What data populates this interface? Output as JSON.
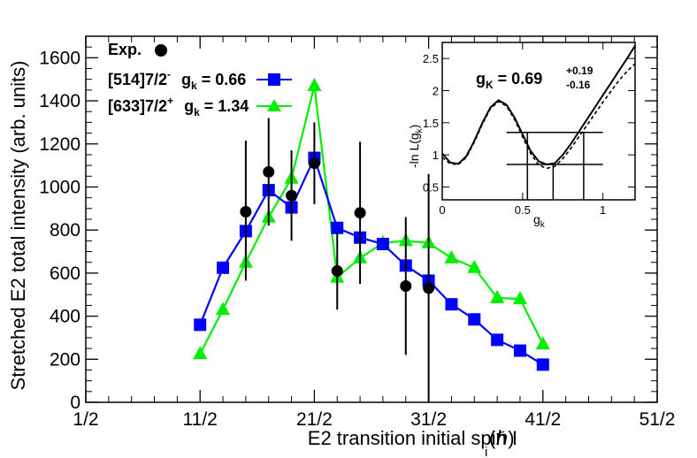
{
  "chart_data": {
    "type": "line",
    "xlabel": "E2 transition initial spin I",
    "xlabel_subscript": "i",
    "xlabel_unit": "(ℏ)",
    "ylabel": "Stretched E2 total intensity (arb. units)",
    "xlim": [
      0.5,
      25.5
    ],
    "ylim": [
      0,
      1700
    ],
    "x_ticks": [
      {
        "value": 0.5,
        "label": "1/2"
      },
      {
        "value": 5.5,
        "label": "11/2"
      },
      {
        "value": 10.5,
        "label": "21/2"
      },
      {
        "value": 15.5,
        "label": "31/2"
      },
      {
        "value": 20.5,
        "label": "41/2"
      },
      {
        "value": 25.5,
        "label": "51/2"
      }
    ],
    "y_ticks": [
      0,
      200,
      400,
      600,
      800,
      1000,
      1200,
      1400,
      1600
    ],
    "series": [
      {
        "name": "Exp.",
        "color": "#000000",
        "marker": "circle",
        "x": [
          7.5,
          8.5,
          9.5,
          10.5,
          11.5,
          12.5,
          14.5,
          15.5
        ],
        "y": [
          885,
          1070,
          960,
          1110,
          610,
          880,
          540,
          530
        ],
        "err_low": [
          320,
          250,
          210,
          190,
          180,
          330,
          320,
          530
        ],
        "err_high": [
          330,
          250,
          210,
          190,
          180,
          330,
          320,
          530
        ]
      },
      {
        "name": "[514]7/2",
        "name_sup": "-",
        "g_label": "g",
        "g_sub": "k",
        "g_value": " = 0.66",
        "color": "#0000ff",
        "marker": "square",
        "x": [
          5.5,
          6.5,
          7.5,
          8.5,
          9.5,
          10.5,
          11.5,
          12.5,
          13.5,
          14.5,
          15.5,
          16.5,
          17.5,
          18.5,
          19.5,
          20.5
        ],
        "y": [
          360,
          625,
          795,
          985,
          905,
          1135,
          810,
          765,
          735,
          635,
          565,
          455,
          385,
          290,
          240,
          175
        ]
      },
      {
        "name": "[633]7/2",
        "name_sup": "+",
        "g_label": "g",
        "g_sub": "k",
        "g_value": " = 1.34",
        "color": "#00ee00",
        "marker": "triangle",
        "x": [
          5.5,
          6.5,
          7.5,
          8.5,
          9.5,
          10.5,
          11.5,
          12.5,
          13.5,
          14.5,
          15.5,
          16.5,
          17.5,
          18.5,
          19.5,
          20.5
        ],
        "y": [
          225,
          430,
          650,
          860,
          1040,
          1470,
          580,
          670,
          740,
          750,
          740,
          670,
          625,
          485,
          480,
          270
        ]
      }
    ],
    "inset": {
      "xlabel": "g",
      "xlabel_sub": "k",
      "ylabel": "-ln L(g",
      "ylabel_sub": "k",
      "ylabel_close": ")",
      "xlim": [
        0,
        1.2
      ],
      "ylim": [
        0.3,
        2.75
      ],
      "x_ticks": [
        {
          "value": 0,
          "label": "0"
        },
        {
          "value": 0.5,
          "label": "0.5"
        },
        {
          "value": 1,
          "label": "1"
        }
      ],
      "y_ticks": [
        {
          "value": 0.5,
          "label": "0.5"
        },
        {
          "value": 1,
          "label": "1"
        },
        {
          "value": 1.5,
          "label": "1.5"
        },
        {
          "value": 2,
          "label": "2"
        },
        {
          "value": 2.5,
          "label": "2.5"
        }
      ],
      "annotation": {
        "main": "g",
        "sub": "K",
        "value": " = 0.69",
        "plus": "+0.19",
        "minus": "-0.16"
      },
      "curve_solid": {
        "x": [
          0,
          0.05,
          0.1,
          0.15,
          0.2,
          0.25,
          0.3,
          0.35,
          0.4,
          0.45,
          0.5,
          0.55,
          0.6,
          0.65,
          0.7,
          0.75,
          0.8,
          0.85,
          0.9,
          0.95,
          1.0,
          1.05,
          1.1,
          1.15,
          1.2
        ],
        "y": [
          1.02,
          0.88,
          0.86,
          0.98,
          1.22,
          1.5,
          1.74,
          1.85,
          1.78,
          1.58,
          1.32,
          1.06,
          0.9,
          0.85,
          0.87,
          1.0,
          1.17,
          1.36,
          1.55,
          1.74,
          1.93,
          2.12,
          2.31,
          2.5,
          2.7
        ]
      },
      "curve_dashed": {
        "x": [
          0,
          0.05,
          0.1,
          0.15,
          0.2,
          0.25,
          0.3,
          0.35,
          0.4,
          0.45,
          0.5,
          0.55,
          0.6,
          0.65,
          0.7,
          0.75,
          0.8,
          0.85,
          0.9,
          0.95,
          1.0,
          1.05,
          1.1,
          1.15,
          1.2
        ],
        "y": [
          0.96,
          0.86,
          0.85,
          0.96,
          1.2,
          1.48,
          1.72,
          1.83,
          1.76,
          1.55,
          1.28,
          1.02,
          0.84,
          0.79,
          0.82,
          0.94,
          1.1,
          1.28,
          1.46,
          1.64,
          1.82,
          1.99,
          2.16,
          2.3,
          2.42
        ]
      },
      "h_lines": [
        1.35,
        0.85
      ],
      "v_lines": [
        {
          "x": 0.53,
          "y_top": 1.35
        },
        {
          "x": 0.69,
          "y_top": 0.85
        },
        {
          "x": 0.88,
          "y_top": 1.35
        }
      ],
      "h_line_range": [
        0.4,
        1.0
      ]
    }
  }
}
